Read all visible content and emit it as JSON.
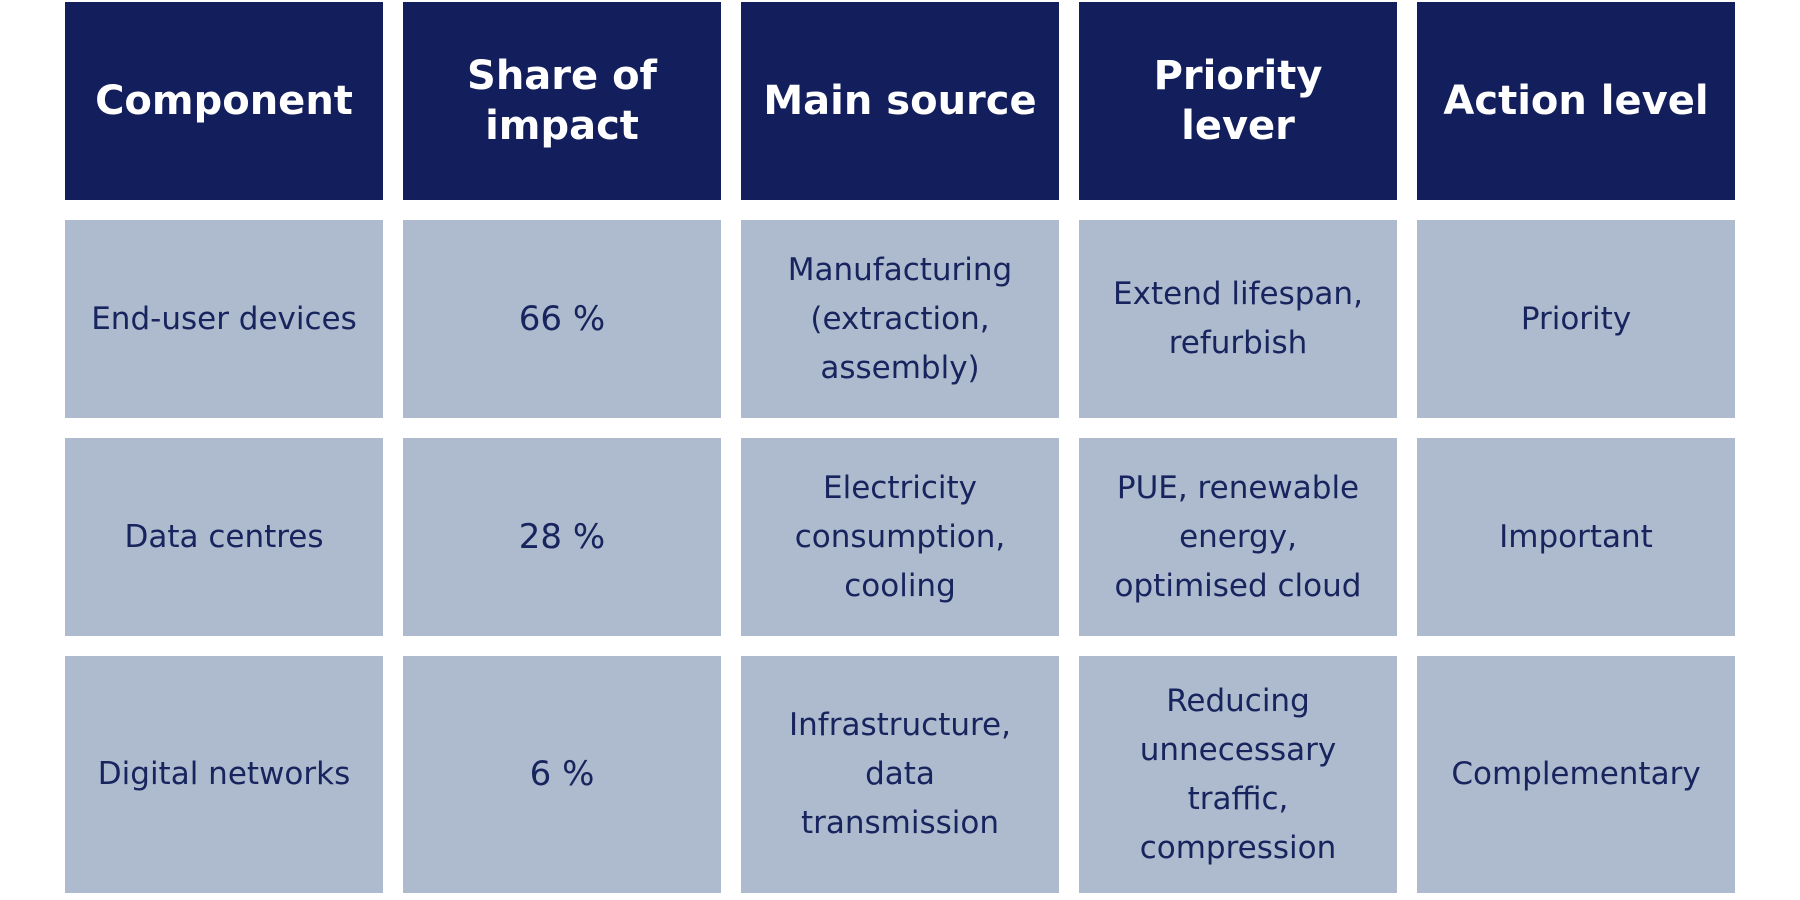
{
  "table": {
    "headers": [
      "Component",
      "Share of impact",
      "Main source",
      "Priority lever",
      "Action level"
    ],
    "rows": [
      {
        "component": "End-user devices",
        "share": "66 %",
        "main_source": "Manufacturing (extraction, assembly)",
        "priority_lever": "Extend lifespan, refurbish",
        "action_level": "Priority"
      },
      {
        "component": "Data centres",
        "share": "28 %",
        "main_source": "Electricity consumption, cooling",
        "priority_lever": "PUE, renewable energy, optimised cloud",
        "action_level": "Important"
      },
      {
        "component": "Digital networks",
        "share": "6 %",
        "main_source": "Infrastructure, data transmission",
        "priority_lever": "Reducing unnecessary traffic, compression",
        "action_level": "Complementary"
      }
    ]
  },
  "colors": {
    "header_background": "#131f5c",
    "header_text": "#ffffff",
    "cell_background": "#aebacd",
    "cell_text": "#17245e"
  }
}
